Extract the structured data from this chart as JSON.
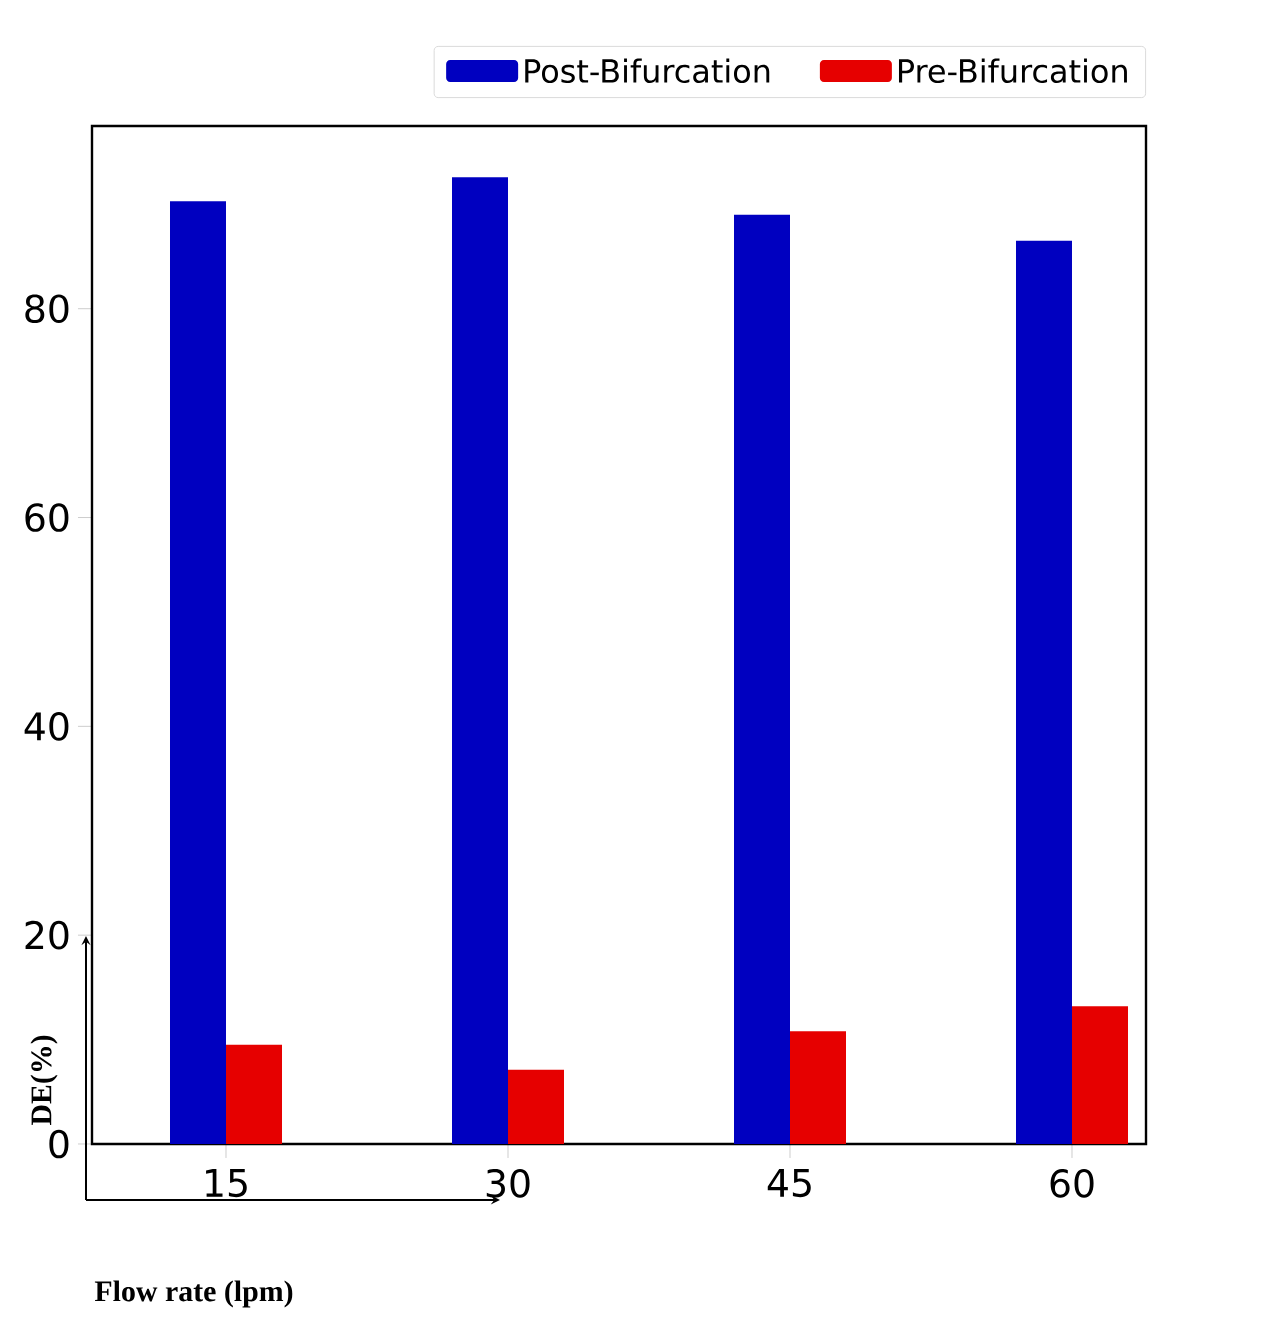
{
  "chart_data": {
    "type": "bar",
    "categories": [
      "15",
      "30",
      "45",
      "60"
    ],
    "xlabel": "Flow rate (lpm)",
    "ylabel": "DE(%)",
    "series": [
      {
        "name": "Post-Bifurcation",
        "color": "#0000c0",
        "values": [
          90.3,
          92.6,
          89.0,
          86.5
        ]
      },
      {
        "name": "Pre-Bifurcation",
        "color": "#e60000",
        "values": [
          9.5,
          7.1,
          10.8,
          13.2
        ]
      }
    ],
    "ylim": [
      0,
      97.5
    ],
    "yticks": [
      0,
      20,
      40,
      60,
      80
    ],
    "legend": "top right"
  }
}
